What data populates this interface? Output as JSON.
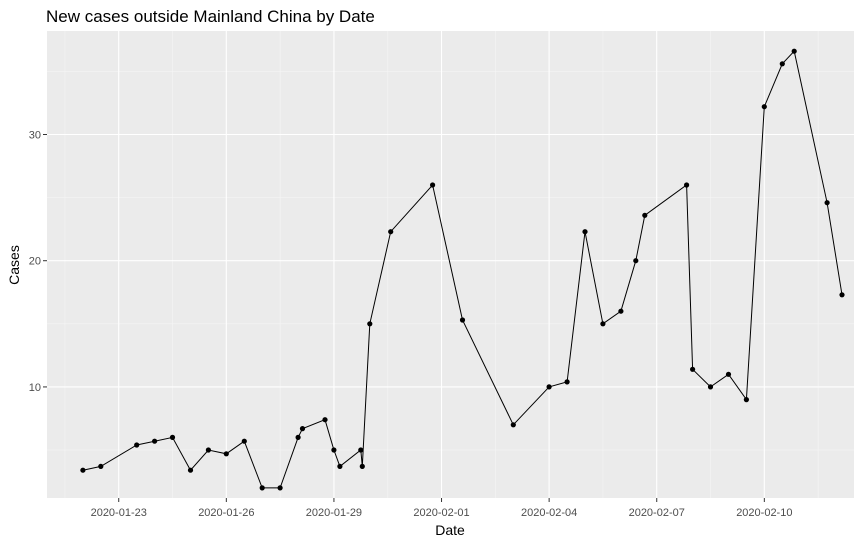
{
  "chart_data": {
    "type": "line",
    "title": "New cases outside Mainland China by Date",
    "xlabel": "Date",
    "ylabel": "Cases",
    "x_ticks": [
      "2020-01-23",
      "2020-01-26",
      "2020-01-29",
      "2020-02-01",
      "2020-02-04",
      "2020-02-07",
      "2020-02-10"
    ],
    "y_ticks": [
      10,
      20,
      30
    ],
    "xlim": [
      "2020-01-21T00:00",
      "2020-02-12T12:00"
    ],
    "ylim": [
      1.2,
      38.2
    ],
    "grid": true,
    "points": [
      {
        "x": "2020-01-22T00:00",
        "y": 3.4
      },
      {
        "x": "2020-01-22T12:00",
        "y": 3.7
      },
      {
        "x": "2020-01-23T12:00",
        "y": 5.4
      },
      {
        "x": "2020-01-24T00:00",
        "y": 5.7
      },
      {
        "x": "2020-01-24T12:00",
        "y": 6.0
      },
      {
        "x": "2020-01-25T00:00",
        "y": 3.4
      },
      {
        "x": "2020-01-25T12:00",
        "y": 5.0
      },
      {
        "x": "2020-01-26T00:00",
        "y": 4.7
      },
      {
        "x": "2020-01-26T12:00",
        "y": 5.7
      },
      {
        "x": "2020-01-27T00:00",
        "y": 2.0
      },
      {
        "x": "2020-01-27T12:00",
        "y": 2.0
      },
      {
        "x": "2020-01-28T00:00",
        "y": 6.0
      },
      {
        "x": "2020-01-28T03:00",
        "y": 6.7
      },
      {
        "x": "2020-01-28T18:00",
        "y": 7.4
      },
      {
        "x": "2020-01-29T00:00",
        "y": 5.0
      },
      {
        "x": "2020-01-29T04:00",
        "y": 3.7
      },
      {
        "x": "2020-01-29T18:00",
        "y": 5.0
      },
      {
        "x": "2020-01-29T19:00",
        "y": 3.7
      },
      {
        "x": "2020-01-30T00:00",
        "y": 15.0
      },
      {
        "x": "2020-01-30T14:00",
        "y": 22.3
      },
      {
        "x": "2020-01-31T18:00",
        "y": 26.0
      },
      {
        "x": "2020-02-01T14:00",
        "y": 15.3
      },
      {
        "x": "2020-02-03T00:00",
        "y": 7.0
      },
      {
        "x": "2020-02-04T00:00",
        "y": 10.0
      },
      {
        "x": "2020-02-04T12:00",
        "y": 10.4
      },
      {
        "x": "2020-02-05T00:00",
        "y": 22.3
      },
      {
        "x": "2020-02-05T12:00",
        "y": 15.0
      },
      {
        "x": "2020-02-06T00:00",
        "y": 16.0
      },
      {
        "x": "2020-02-06T10:00",
        "y": 20.0
      },
      {
        "x": "2020-02-06T16:00",
        "y": 23.6
      },
      {
        "x": "2020-02-07T20:00",
        "y": 26.0
      },
      {
        "x": "2020-02-08T00:00",
        "y": 11.4
      },
      {
        "x": "2020-02-08T12:00",
        "y": 10.0
      },
      {
        "x": "2020-02-09T00:00",
        "y": 11.0
      },
      {
        "x": "2020-02-09T12:00",
        "y": 9.0
      },
      {
        "x": "2020-02-10T00:00",
        "y": 32.2
      },
      {
        "x": "2020-02-10T12:00",
        "y": 35.6
      },
      {
        "x": "2020-02-10T20:00",
        "y": 36.6
      },
      {
        "x": "2020-02-11T18:00",
        "y": 24.6
      },
      {
        "x": "2020-02-12T04:00",
        "y": 17.3
      }
    ]
  }
}
